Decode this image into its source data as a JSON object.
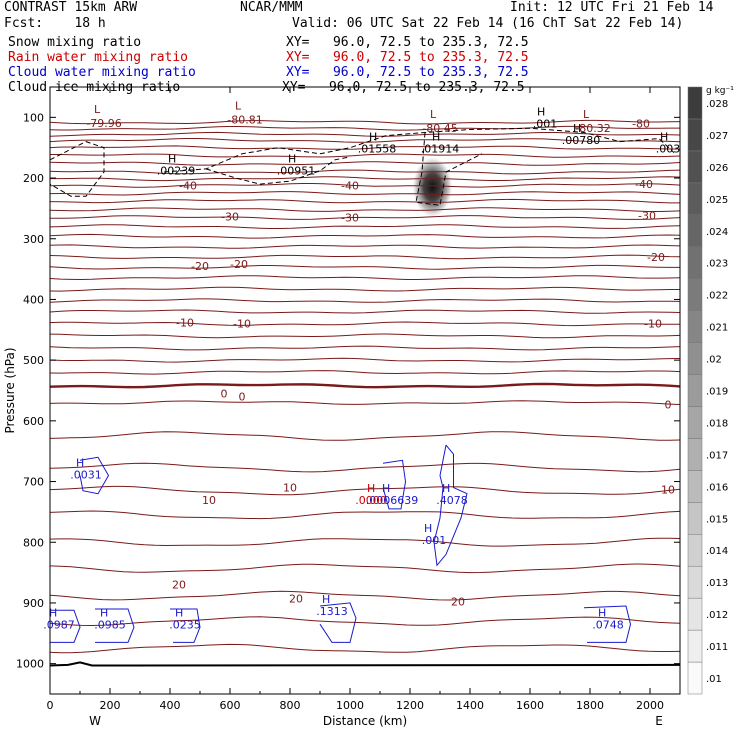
{
  "header": {
    "model": "CONTRAST 15km ARW",
    "org": "NCAR/MMM",
    "init": "Init: 12 UTC Fri 21 Feb 14",
    "fcst": "Fcst:    18 h",
    "valid": "Valid: 06 UTC Sat 22 Feb 14 (16 ChT Sat 22 Feb 14)",
    "fields": [
      {
        "name": "Snow mixing ratio",
        "xy": "XY=   96.0, 72.5 to 235.3, 72.5",
        "color": "#000000"
      },
      {
        "name": "Rain water mixing ratio",
        "xy": "XY=   96.0, 72.5 to 235.3, 72.5",
        "color": "#cc0000"
      },
      {
        "name": "Cloud water mixing ratio",
        "xy": "XY=   96.0, 72.5 to 235.3, 72.5",
        "color": "#0000cc"
      },
      {
        "name": "Cloud ice mixing ratio",
        "xy": "XY=   96.0, 72.5 to 235.3, 72.5",
        "color": "#000000"
      }
    ]
  },
  "chart_data": {
    "type": "cross-section",
    "xlabel": "Distance (km)",
    "ylabel": "Pressure (hPa)",
    "xlim": [
      0,
      2100
    ],
    "ylim": [
      1050,
      50
    ],
    "xticks": [
      0,
      200,
      400,
      600,
      800,
      1000,
      1200,
      1400,
      1600,
      1800,
      2000
    ],
    "yticks": [
      100,
      200,
      300,
      400,
      500,
      600,
      700,
      800,
      900,
      1000
    ],
    "end_labels": {
      "west": "W",
      "east": "E"
    },
    "colorbar": {
      "unit": "g kg⁻¹",
      "levels": [
        ".01",
        ".011",
        ".012",
        ".013",
        ".014",
        ".015",
        ".016",
        ".017",
        ".018",
        ".019",
        ".02",
        ".021",
        ".022",
        ".023",
        ".024",
        ".025",
        ".026",
        ".027",
        ".028"
      ]
    },
    "temperature_contour_labels": [
      {
        "text": "-80",
        "x": 1970,
        "p": 110
      },
      {
        "text": "-40",
        "x": 460,
        "p": 212
      },
      {
        "text": "-40",
        "x": 1000,
        "p": 212
      },
      {
        "text": "-40",
        "x": 1980,
        "p": 210
      },
      {
        "text": "-30",
        "x": 600,
        "p": 263
      },
      {
        "text": "-30",
        "x": 1000,
        "p": 265
      },
      {
        "text": "-30",
        "x": 1990,
        "p": 262
      },
      {
        "text": "-20",
        "x": 500,
        "p": 345
      },
      {
        "text": "-20",
        "x": 630,
        "p": 342
      },
      {
        "text": "-20",
        "x": 2020,
        "p": 330
      },
      {
        "text": "-10",
        "x": 450,
        "p": 438
      },
      {
        "text": "-10",
        "x": 640,
        "p": 440
      },
      {
        "text": "-10",
        "x": 2010,
        "p": 440
      },
      {
        "text": "0",
        "x": 580,
        "p": 555
      },
      {
        "text": "0",
        "x": 640,
        "p": 560
      },
      {
        "text": "0",
        "x": 2060,
        "p": 573
      },
      {
        "text": "10",
        "x": 530,
        "p": 730
      },
      {
        "text": "10",
        "x": 800,
        "p": 710
      },
      {
        "text": "10",
        "x": 2060,
        "p": 713
      },
      {
        "text": "20",
        "x": 430,
        "p": 870
      },
      {
        "text": "20",
        "x": 820,
        "p": 893
      },
      {
        "text": "20",
        "x": 1360,
        "p": 898
      }
    ],
    "temperature_lows": [
      {
        "text": "-79.96",
        "x": 180,
        "p": 104
      },
      {
        "text": "-80.81",
        "x": 650,
        "p": 99
      },
      {
        "text": "-80.45",
        "x": 1300,
        "p": 113
      },
      {
        "text": "-80.32",
        "x": 1810,
        "p": 113
      }
    ],
    "ice_maxima": [
      {
        "text": ".00239",
        "x": 420,
        "p": 194
      },
      {
        "text": ".00951",
        "x": 820,
        "p": 194
      },
      {
        "text": ".01558",
        "x": 1090,
        "p": 158
      },
      {
        "text": ".01914",
        "x": 1300,
        "p": 158
      },
      {
        "text": ".001",
        "x": 1650,
        "p": 117
      },
      {
        "text": ".00780",
        "x": 1770,
        "p": 144
      },
      {
        "text": ".003",
        "x": 2060,
        "p": 158
      }
    ],
    "cloud_water_maxima": [
      {
        "text": ".0031",
        "x": 120,
        "p": 695
      },
      {
        "text": ".0006639",
        "x": 1140,
        "p": 737
      },
      {
        "text": ".4078",
        "x": 1340,
        "p": 737
      },
      {
        "text": ".001",
        "x": 1280,
        "p": 803
      },
      {
        "text": ".1313",
        "x": 940,
        "p": 920
      },
      {
        "text": ".0987",
        "x": 30,
        "p": 942
      },
      {
        "text": ".0985",
        "x": 200,
        "p": 942
      },
      {
        "text": ".0235",
        "x": 450,
        "p": 942
      },
      {
        "text": ".0748",
        "x": 1860,
        "p": 942
      }
    ],
    "rain_maxima": [
      {
        "text": ".0000",
        "x": 1070,
        "p": 737
      }
    ],
    "snow_maximum": {
      "x": 1275,
      "p": 215,
      "value": 0.028
    }
  }
}
